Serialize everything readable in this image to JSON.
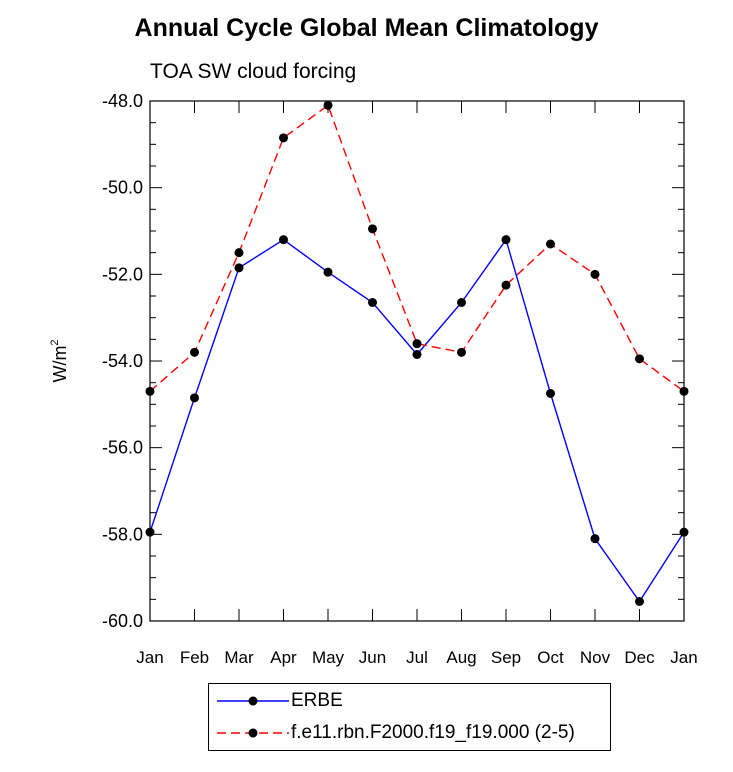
{
  "chart_data": {
    "type": "line",
    "title": "Annual Cycle Global Mean Climatology",
    "subtitle": "TOA SW cloud forcing",
    "ylabel": "W/m",
    "ylabel_sup": "2",
    "xlabel": "",
    "categories": [
      "Jan",
      "Feb",
      "Mar",
      "Apr",
      "May",
      "Jun",
      "Jul",
      "Aug",
      "Sep",
      "Oct",
      "Nov",
      "Dec",
      "Jan"
    ],
    "ylim": [
      -60.0,
      -48.0
    ],
    "yticks": [
      -48.0,
      -50.0,
      -52.0,
      -54.0,
      -56.0,
      -58.0,
      -60.0
    ],
    "ytick_labels": [
      "-48.0",
      "-50.0",
      "-52.0",
      "-54.0",
      "-56.0",
      "-58.0",
      "-60.0"
    ],
    "series": [
      {
        "name": "ERBE",
        "color": "#0000ff",
        "dash": "solid",
        "values": [
          -57.95,
          -54.85,
          -51.85,
          -51.2,
          -51.95,
          -52.65,
          -53.85,
          -52.65,
          -51.2,
          -54.75,
          -58.1,
          -59.55,
          -57.95
        ]
      },
      {
        "name": "f.e11.rbn.F2000.f19_f19.000 (2-5)",
        "color": "#ff0000",
        "dash": "dashed",
        "values": [
          -54.7,
          -53.8,
          -51.5,
          -48.85,
          -48.1,
          -50.95,
          -53.6,
          -53.8,
          -52.25,
          -51.3,
          -52.0,
          -53.95,
          -54.7
        ]
      }
    ],
    "legend": "bottom"
  }
}
